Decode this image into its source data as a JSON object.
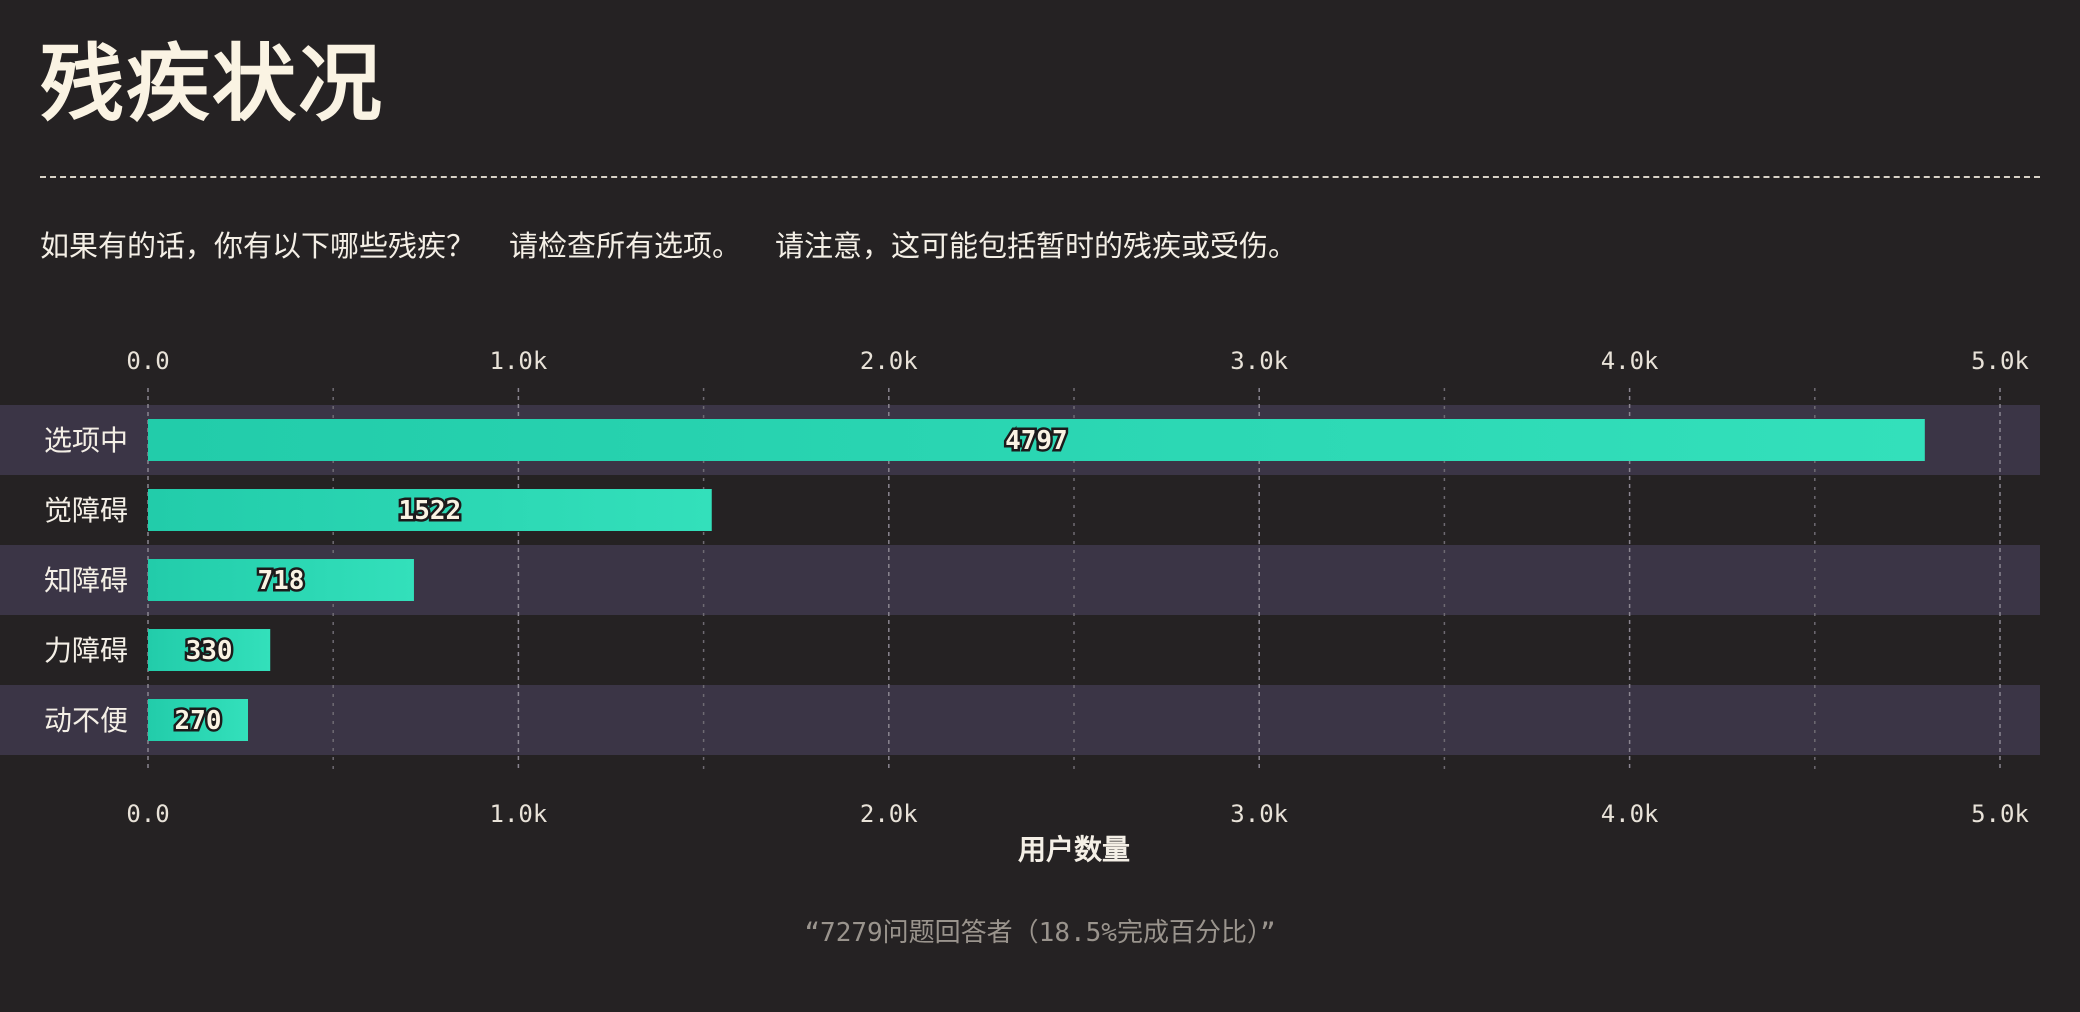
{
  "header": {
    "title": "残疾状况"
  },
  "question": {
    "part1": "如果有的话，你有以下哪些残疾？",
    "part2": "请检查所有选项。",
    "part3": "请注意，这可能包括暂时的残疾或受伤。"
  },
  "footnote": "“7279问题回答者（18.5%完成百分比）”",
  "colors": {
    "background": "#252223",
    "bar_start": "#22ccaa",
    "bar_end": "#33e0bb",
    "band": "#3b3546"
  },
  "chart_data": {
    "type": "bar",
    "orientation": "horizontal",
    "categories": [
      "选项中",
      "觉障碍",
      "知障碍",
      "力障碍",
      "动不便"
    ],
    "values": [
      4797,
      1522,
      718,
      330,
      270
    ],
    "xlabel": "用户数量",
    "xlim": [
      0,
      5000
    ],
    "ticks": [
      0,
      1000,
      2000,
      3000,
      4000,
      5000
    ],
    "tick_labels": [
      "0.0",
      "1.0k",
      "2.0k",
      "3.0k",
      "4.0k",
      "5.0k"
    ],
    "grid": true,
    "axis_position": "top-and-bottom"
  }
}
